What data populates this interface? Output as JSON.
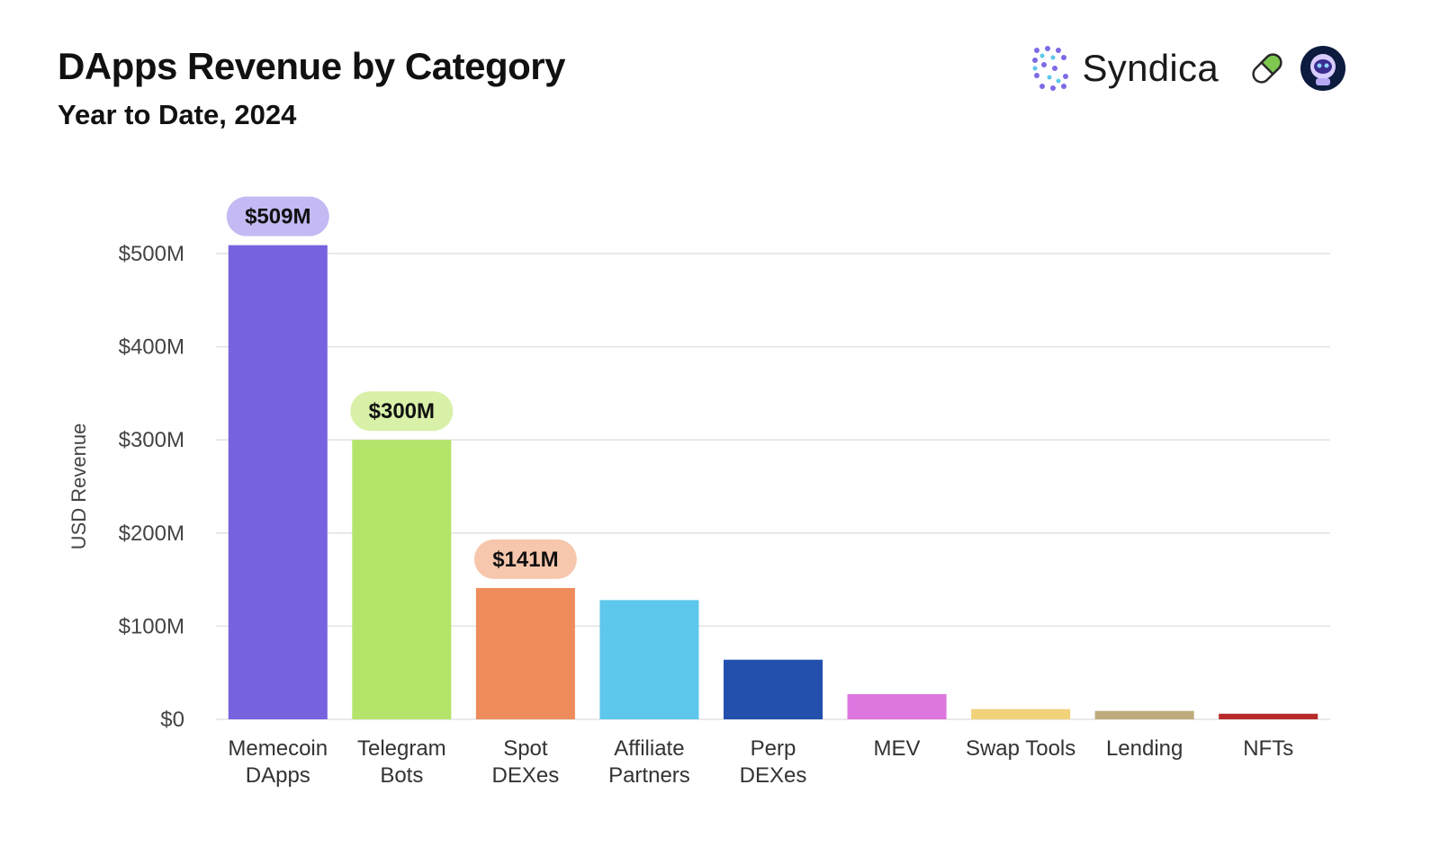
{
  "brand": {
    "name": "Syndica",
    "logo_icon": "syndica-dots-icon",
    "extra_icons": [
      "pill-icon",
      "astronaut-icon"
    ],
    "colors": {
      "pill": "#7ec850",
      "astronaut_bg": "#0d1b3e",
      "astronaut_face": "#8fd3ff"
    }
  },
  "chart_data": {
    "type": "bar",
    "title": "DApps Revenue by Category",
    "subtitle": "Year to Date, 2024",
    "ylabel": "USD Revenue",
    "xlabel": "",
    "ylim": [
      0,
      500
    ],
    "yticks": [
      0,
      100,
      200,
      300,
      400,
      500
    ],
    "ytick_labels": [
      "$0",
      "$100M",
      "$200M",
      "$300M",
      "$400M",
      "$500M"
    ],
    "grid": true,
    "categories": [
      {
        "lines": [
          "Memecoin",
          "DApps"
        ]
      },
      {
        "lines": [
          "Telegram",
          "Bots"
        ]
      },
      {
        "lines": [
          "Spot",
          "DEXes"
        ]
      },
      {
        "lines": [
          "Affiliate",
          "Partners"
        ]
      },
      {
        "lines": [
          "Perp",
          "DEXes"
        ]
      },
      {
        "lines": [
          "MEV"
        ]
      },
      {
        "lines": [
          "Swap Tools"
        ]
      },
      {
        "lines": [
          "Lending"
        ]
      },
      {
        "lines": [
          "NFTs"
        ]
      }
    ],
    "values": [
      509,
      300,
      141,
      128,
      64,
      27,
      11,
      9,
      6
    ],
    "colors": [
      "#7763e0",
      "#b4e36a",
      "#ee8c5c",
      "#5ec7ec",
      "#2350ad",
      "#dd77df",
      "#f1d27a",
      "#bfac7c",
      "#b82a2a"
    ],
    "data_labels": [
      {
        "index": 0,
        "text": "$509M",
        "bg": "#c4b9f3"
      },
      {
        "index": 1,
        "text": "$300M",
        "bg": "#d8f0a8"
      },
      {
        "index": 2,
        "text": "$141M",
        "bg": "#f7c7ad"
      }
    ]
  }
}
